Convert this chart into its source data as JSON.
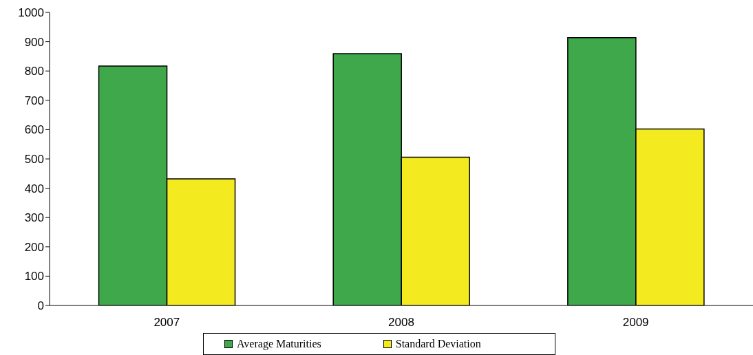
{
  "chart_data": {
    "type": "bar",
    "categories": [
      "2007",
      "2008",
      "2009"
    ],
    "series": [
      {
        "name": "Average Maturities",
        "color": "#3ea84a",
        "values": [
          817,
          859,
          914
        ]
      },
      {
        "name": "Standard Deviation",
        "color": "#f3eb1f",
        "values": [
          432,
          506,
          602
        ]
      }
    ],
    "ylim": [
      0,
      1000
    ],
    "yticks": [
      0,
      100,
      200,
      300,
      400,
      500,
      600,
      700,
      800,
      900,
      1000
    ],
    "grid": false,
    "legend": "bottom"
  }
}
